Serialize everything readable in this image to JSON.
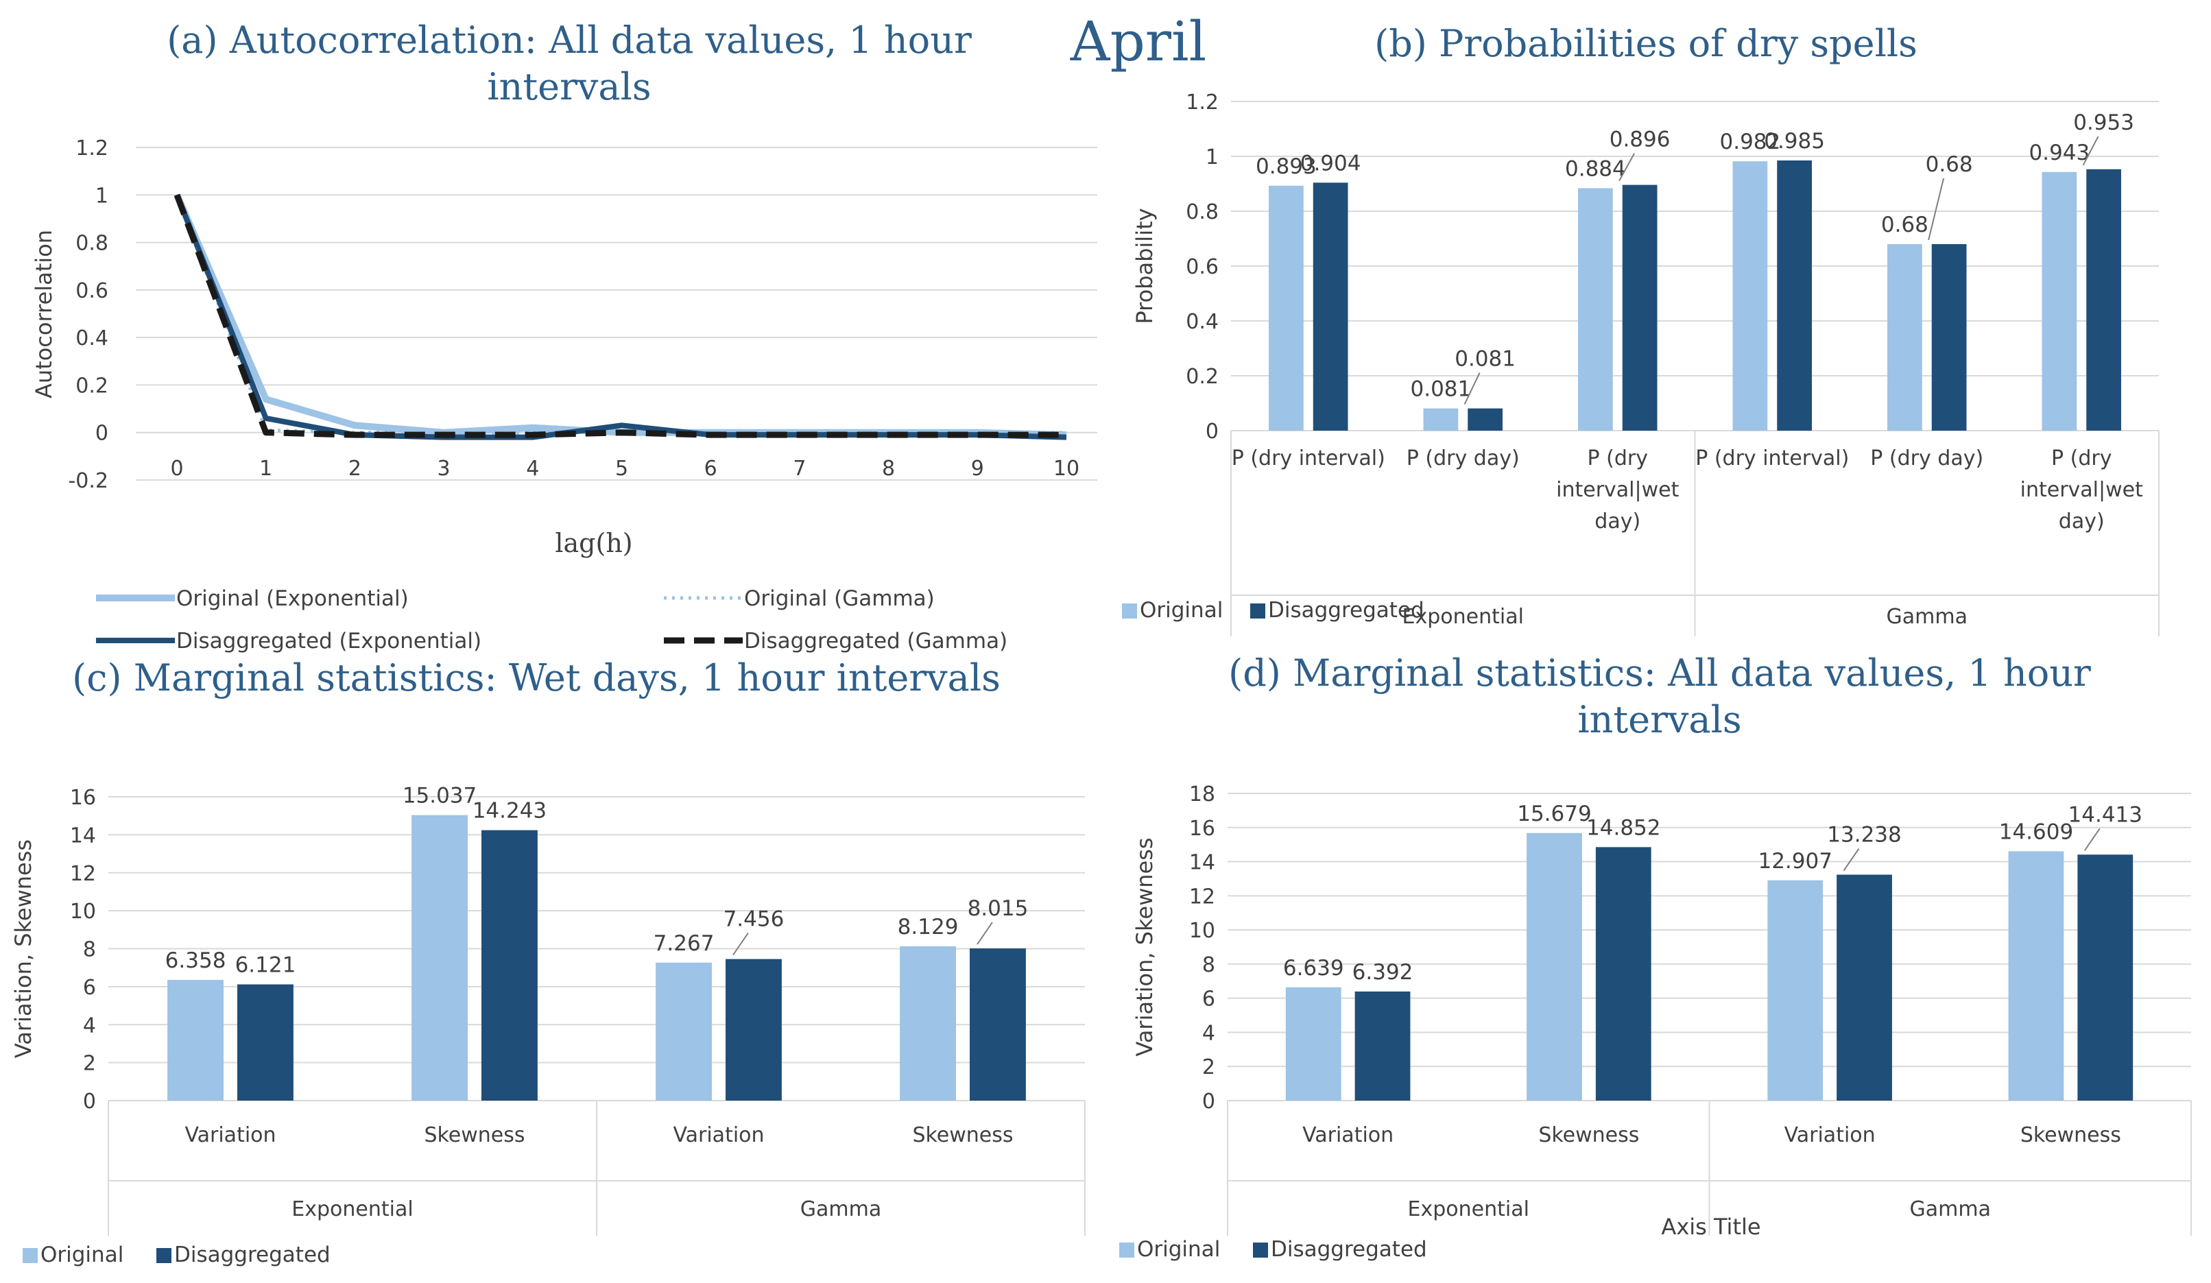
{
  "figure_title": "April",
  "colors": {
    "original": "#9dc3e6",
    "disaggregated": "#1f4e79",
    "gamma_disagg": "#1a1a1a",
    "text": "#404040",
    "title": "#2f5f8a"
  },
  "chart_data": [
    {
      "id": "a",
      "type": "line",
      "title": "(a) Autocorrelation: All data values, 1 hour intervals",
      "title_lines": [
        "(a) Autocorrelation: All data values, 1 hour",
        "intervals"
      ],
      "xlabel": "lag(h)",
      "ylabel": "Autocorrelation",
      "x": [
        0,
        1,
        2,
        3,
        4,
        5,
        6,
        7,
        8,
        9,
        10
      ],
      "xticks": [
        "0",
        "1",
        "2",
        "3",
        "4",
        "5",
        "6",
        "7",
        "8",
        "9",
        "10"
      ],
      "ylim": [
        -0.2,
        1.2
      ],
      "yticks": [
        "-0.2",
        "0",
        "0.2",
        "0.4",
        "0.6",
        "0.8",
        "1",
        "1.2"
      ],
      "series": [
        {
          "name": "Original (Exponential)",
          "style": "solid-light",
          "values": [
            1,
            0.14,
            0.03,
            0.0,
            0.02,
            0.0,
            0.0,
            0.0,
            0.0,
            0.0,
            -0.01
          ]
        },
        {
          "name": "Original (Gamma)",
          "style": "dotted-light",
          "values": [
            1,
            0.01,
            0.0,
            0.0,
            0.0,
            0.0,
            0.0,
            0.0,
            0.0,
            0.0,
            0.0
          ]
        },
        {
          "name": "Disaggregated (Exponential)",
          "style": "solid-dark",
          "values": [
            1,
            0.06,
            -0.01,
            -0.02,
            -0.02,
            0.03,
            -0.01,
            -0.01,
            -0.01,
            -0.01,
            -0.02
          ]
        },
        {
          "name": "Disaggregated (Gamma)",
          "style": "dashed-black",
          "values": [
            1,
            0.0,
            -0.01,
            -0.01,
            -0.01,
            0.0,
            -0.01,
            -0.01,
            -0.01,
            -0.01,
            -0.01
          ]
        }
      ]
    },
    {
      "id": "b",
      "type": "bar",
      "title": "(b) Probabilities of dry spells",
      "ylabel": "Probability",
      "ylim": [
        0,
        1.2
      ],
      "yticks": [
        "0",
        "0.2",
        "0.4",
        "0.6",
        "0.8",
        "1",
        "1.2"
      ],
      "groups": [
        "Exponential",
        "Gamma"
      ],
      "categories": [
        [
          "P (dry interval)"
        ],
        [
          "P (dry day)"
        ],
        [
          "P (dry",
          "interval|wet",
          "day)"
        ],
        [
          "P (dry interval)"
        ],
        [
          "P (dry day)"
        ],
        [
          "P (dry",
          "interval|wet",
          "day)"
        ]
      ],
      "series": [
        {
          "name": "Original",
          "values": [
            0.893,
            0.081,
            0.884,
            0.982,
            0.68,
            0.943
          ],
          "labels": [
            "0.893",
            "0.081",
            "0.884",
            "0.982",
            "0.68",
            "0.943"
          ]
        },
        {
          "name": "Disaggregated",
          "values": [
            0.904,
            0.081,
            0.896,
            0.985,
            0.68,
            0.953
          ],
          "labels": [
            "0.904",
            "0.081",
            "0.896",
            "0.985",
            "0.68",
            "0.953"
          ]
        }
      ]
    },
    {
      "id": "c",
      "type": "bar",
      "title": "(c) Marginal statistics: Wet days, 1 hour intervals",
      "ylabel": "Variation, Skewness",
      "ylim": [
        0,
        16
      ],
      "yticks": [
        "0",
        "2",
        "4",
        "6",
        "8",
        "10",
        "12",
        "14",
        "16"
      ],
      "groups": [
        "Exponential",
        "Gamma"
      ],
      "categories": [
        [
          "Variation"
        ],
        [
          "Skewness"
        ],
        [
          "Variation"
        ],
        [
          "Skewness"
        ]
      ],
      "series": [
        {
          "name": "Original",
          "values": [
            6.358,
            15.037,
            7.267,
            8.129
          ],
          "labels": [
            "6.358",
            "15.037",
            "7.267",
            "8.129"
          ]
        },
        {
          "name": "Disaggregated",
          "values": [
            6.121,
            14.243,
            7.456,
            8.015
          ],
          "labels": [
            "6.121",
            "14.243",
            "7.456",
            "8.015"
          ]
        }
      ]
    },
    {
      "id": "d",
      "type": "bar",
      "title": "(d) Marginal statistics: All data values, 1 hour intervals",
      "title_lines": [
        "(d) Marginal statistics: All data values, 1 hour",
        "intervals"
      ],
      "ylabel": "Variation, Skewness",
      "xlabel": "Axis Title",
      "ylim": [
        0,
        18
      ],
      "yticks": [
        "0",
        "2",
        "4",
        "6",
        "8",
        "10",
        "12",
        "14",
        "16",
        "18"
      ],
      "groups": [
        "Exponential",
        "Gamma"
      ],
      "categories": [
        [
          "Variation"
        ],
        [
          "Skewness"
        ],
        [
          "Variation"
        ],
        [
          "Skewness"
        ]
      ],
      "series": [
        {
          "name": "Original",
          "values": [
            6.639,
            15.679,
            12.907,
            14.609
          ],
          "labels": [
            "6.639",
            "15.679",
            "12.907",
            "14.609"
          ]
        },
        {
          "name": "Disaggregated",
          "values": [
            6.392,
            14.852,
            13.238,
            14.413
          ],
          "labels": [
            "6.392",
            "14.852",
            "13.238",
            "14.413"
          ]
        }
      ]
    }
  ]
}
